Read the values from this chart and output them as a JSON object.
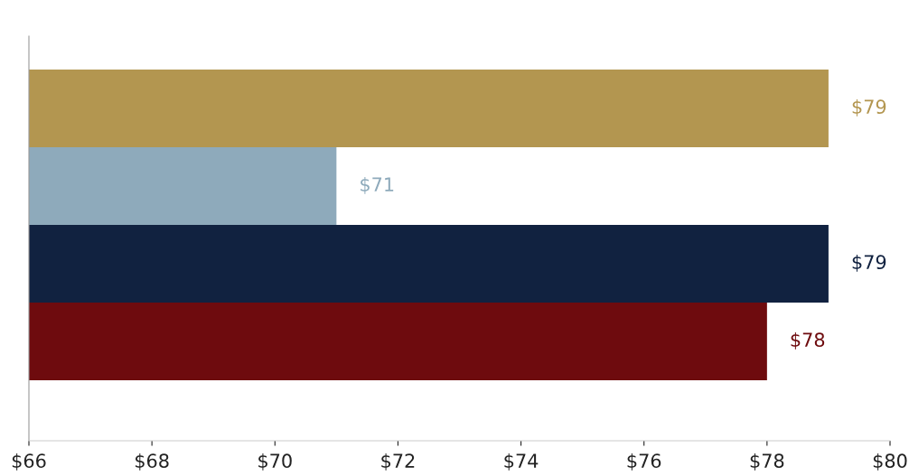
{
  "chart_data": {
    "type": "bar",
    "orientation": "horizontal",
    "categories": [
      null,
      null,
      null,
      null
    ],
    "values": [
      79,
      71,
      79,
      78
    ],
    "colors": [
      "#b39650",
      "#8eaabb",
      "#112240",
      "#6e0b0e"
    ],
    "value_labels": [
      "$79",
      "$71",
      "$79",
      "$78"
    ],
    "xlim": [
      66,
      80
    ],
    "xticks": [
      {
        "value": 66,
        "label": "$66"
      },
      {
        "value": 68,
        "label": "$68"
      },
      {
        "value": 70,
        "label": "$70"
      },
      {
        "value": 72,
        "label": "$72"
      },
      {
        "value": 74,
        "label": "$74"
      },
      {
        "value": 76,
        "label": "$76"
      },
      {
        "value": 78,
        "label": "$78"
      },
      {
        "value": 80,
        "label": "$80"
      }
    ],
    "tick_labels": "x",
    "grid": false,
    "legend": false
  }
}
